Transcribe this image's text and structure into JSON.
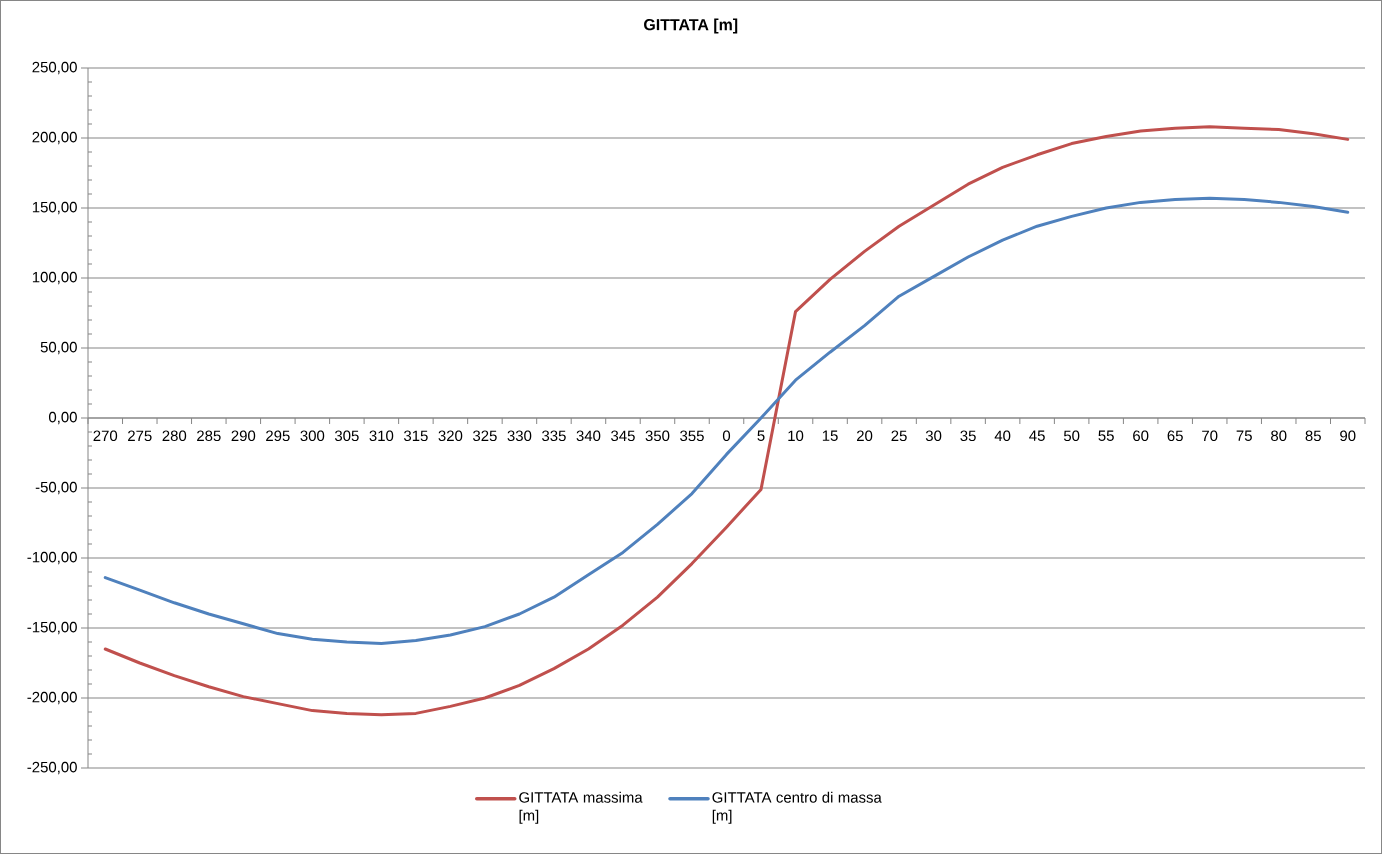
{
  "chart_data": {
    "type": "line",
    "title": "GITTATA [m]",
    "categories": [
      "270",
      "275",
      "280",
      "285",
      "290",
      "295",
      "300",
      "305",
      "310",
      "315",
      "320",
      "325",
      "330",
      "335",
      "340",
      "345",
      "350",
      "355",
      "0",
      "5",
      "10",
      "15",
      "20",
      "25",
      "30",
      "35",
      "40",
      "45",
      "50",
      "55",
      "60",
      "65",
      "70",
      "75",
      "80",
      "85",
      "90"
    ],
    "series": [
      {
        "name": "GITTATA massima [m]",
        "color": "#c0504d",
        "values": [
          -165,
          -175,
          -184,
          -192,
          -199,
          -204,
          -209,
          -211,
          -212,
          -211,
          -206,
          -200,
          -191,
          -179,
          -165,
          -148,
          -128,
          -104,
          -78,
          -51,
          76,
          99,
          119,
          137,
          152,
          167,
          179,
          188,
          196,
          201,
          205,
          207,
          208,
          207,
          206,
          203,
          199
        ]
      },
      {
        "name": "GITTATA centro di  massa [m]",
        "color": "#4f81bd",
        "values": [
          -114,
          -123,
          -132,
          -140,
          -147,
          -154,
          -158,
          -160,
          -161,
          -159,
          -155,
          -149,
          -140,
          -128,
          -112,
          -96,
          -76,
          -54,
          -26,
          0,
          27,
          47,
          66,
          87,
          101,
          115,
          127,
          137,
          144,
          150,
          154,
          156,
          157,
          156,
          154,
          151,
          147
        ]
      }
    ],
    "ylim": [
      -250,
      250
    ],
    "yticks": [
      {
        "value": -250,
        "label": "-250,00"
      },
      {
        "value": -200,
        "label": "-200,00"
      },
      {
        "value": -150,
        "label": "-150,00"
      },
      {
        "value": -100,
        "label": "-100,00"
      },
      {
        "value": -50,
        "label": "-50,00"
      },
      {
        "value": 0,
        "label": "0,00"
      },
      {
        "value": 50,
        "label": "50,00"
      },
      {
        "value": 100,
        "label": "100,00"
      },
      {
        "value": 150,
        "label": "150,00"
      },
      {
        "value": 200,
        "label": "200,00"
      },
      {
        "value": 250,
        "label": "250,00"
      }
    ],
    "grid": "y",
    "legend": "bottom"
  }
}
